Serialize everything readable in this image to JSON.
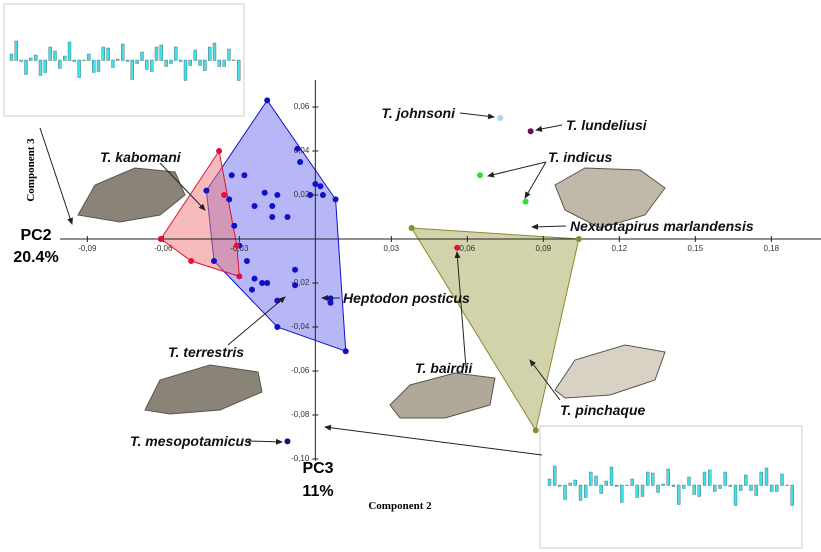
{
  "chart_data": {
    "type": "scatter",
    "x_label": "Component 2",
    "y_label": "Component 3",
    "x_axis_name": "PC2",
    "x_axis_variance": "20.4%",
    "y_axis_name": "PC3",
    "y_axis_variance": "11%",
    "xlim": [
      -0.1,
      0.2
    ],
    "ylim": [
      -0.1,
      0.07
    ],
    "xticks": [
      {
        "value": -0.09,
        "label": "-0,09"
      },
      {
        "value": -0.06,
        "label": "-0,06"
      },
      {
        "value": -0.03,
        "label": "-0,03"
      },
      {
        "value": 0.03,
        "label": "0,03"
      },
      {
        "value": 0.06,
        "label": "0,06"
      },
      {
        "value": 0.09,
        "label": "0,09"
      },
      {
        "value": 0.12,
        "label": "0,12"
      },
      {
        "value": 0.15,
        "label": "0,15"
      },
      {
        "value": 0.18,
        "label": "0,18"
      }
    ],
    "yticks": [
      {
        "value": 0.06,
        "label": "0,06"
      },
      {
        "value": 0.04,
        "label": "0,04"
      },
      {
        "value": 0.02,
        "label": "0,02"
      },
      {
        "value": -0.02,
        "label": "-0,02"
      },
      {
        "value": -0.04,
        "label": "-0,04"
      },
      {
        "value": -0.06,
        "label": "-0,06"
      },
      {
        "value": -0.08,
        "label": "-0,08"
      },
      {
        "value": -0.1,
        "label": "-0,10"
      }
    ],
    "series": [
      {
        "color": "#1010c8",
        "hull_color": "#7070f0",
        "hull": true,
        "x": [
          -0.019,
          -0.007,
          -0.006,
          -0.033,
          -0.028,
          0.0,
          0.002,
          0.003,
          -0.02,
          -0.015,
          -0.034,
          -0.002,
          -0.024,
          -0.017,
          -0.017,
          -0.011,
          -0.032,
          0.008,
          -0.03,
          -0.027,
          -0.024,
          -0.021,
          -0.025,
          -0.019,
          -0.015,
          -0.008,
          -0.008,
          0.006,
          0.006,
          -0.015,
          0.012,
          -0.04,
          -0.043
        ],
        "y": [
          0.063,
          0.041,
          0.035,
          0.029,
          0.029,
          0.025,
          0.024,
          0.02,
          0.021,
          0.02,
          0.018,
          0.02,
          0.015,
          0.015,
          0.01,
          0.01,
          0.006,
          0.018,
          -0.003,
          -0.01,
          -0.018,
          -0.02,
          -0.023,
          -0.02,
          -0.028,
          -0.021,
          -0.014,
          -0.027,
          -0.029,
          -0.04,
          -0.051,
          -0.01,
          0.022
        ]
      },
      {
        "color": "#e0103a",
        "hull_color": "#f07878",
        "hull": true,
        "x": [
          -0.038,
          -0.061,
          -0.049,
          -0.03,
          -0.031,
          -0.036
        ],
        "y": [
          0.04,
          0.0,
          -0.01,
          -0.017,
          -0.003,
          0.02
        ]
      },
      {
        "color": "#8a8a30",
        "hull_color": "#a8a858",
        "hull": true,
        "x": [
          0.038,
          0.104,
          0.087
        ],
        "y": [
          0.005,
          0.0,
          -0.087
        ]
      },
      {
        "color": "#a8d8e8",
        "hull": false,
        "x": [
          0.073
        ],
        "y": [
          0.055
        ]
      },
      {
        "color": "#6a1050",
        "hull": false,
        "x": [
          0.085
        ],
        "y": [
          0.049
        ]
      },
      {
        "color": "#30e030",
        "hull": false,
        "x": [
          0.065
        ],
        "y": [
          0.029
        ]
      },
      {
        "color": "#30e030",
        "hull": false,
        "x": [
          0.083
        ],
        "y": [
          0.017
        ]
      },
      {
        "color": "#e0103a",
        "hull": false,
        "x": [
          0.056
        ],
        "y": [
          -0.004
        ]
      },
      {
        "color": "#101080",
        "hull": false,
        "x": [
          -0.011
        ],
        "y": [
          -0.092
        ]
      }
    ],
    "annotations": [
      "T. johnsoni",
      "T. lundeliusi",
      "T. indicus",
      "Nexuotapirus marlandensis",
      "T. kabomani",
      "Heptodon posticus",
      "T. terrestris",
      "T. bairdii",
      "T. pinchaque",
      "T. mesopotamicus"
    ]
  }
}
